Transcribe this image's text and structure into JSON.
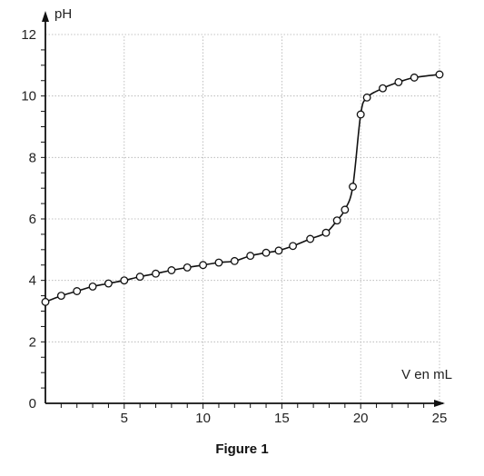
{
  "caption": "Figure 1",
  "chart_data": {
    "type": "scatter",
    "title": "",
    "xlabel": "V en mL",
    "ylabel": "pH",
    "xlim": [
      0,
      25
    ],
    "ylim": [
      0,
      12
    ],
    "x_ticks": [
      5,
      10,
      15,
      20,
      25
    ],
    "y_ticks": [
      0,
      2,
      4,
      6,
      8,
      10,
      12
    ],
    "grid": true,
    "line": "smooth curve through points",
    "series": [
      {
        "points": [
          [
            0,
            3.3
          ],
          [
            1,
            3.5
          ],
          [
            2,
            3.65
          ],
          [
            3,
            3.8
          ],
          [
            4,
            3.9
          ],
          [
            5,
            4.0
          ],
          [
            6,
            4.12
          ],
          [
            7,
            4.22
          ],
          [
            8,
            4.33
          ],
          [
            9,
            4.42
          ],
          [
            10,
            4.5
          ],
          [
            11,
            4.58
          ],
          [
            12,
            4.63
          ],
          [
            13,
            4.8
          ],
          [
            14,
            4.9
          ],
          [
            14.8,
            4.97
          ],
          [
            15.7,
            5.12
          ],
          [
            16.8,
            5.35
          ],
          [
            17.8,
            5.55
          ],
          [
            18.5,
            5.95
          ],
          [
            19,
            6.3
          ],
          [
            19.5,
            7.05
          ],
          [
            20,
            9.4
          ],
          [
            20.4,
            9.95
          ],
          [
            21.4,
            10.25
          ],
          [
            22.4,
            10.45
          ],
          [
            23.4,
            10.6
          ],
          [
            25,
            10.7
          ]
        ]
      }
    ]
  }
}
